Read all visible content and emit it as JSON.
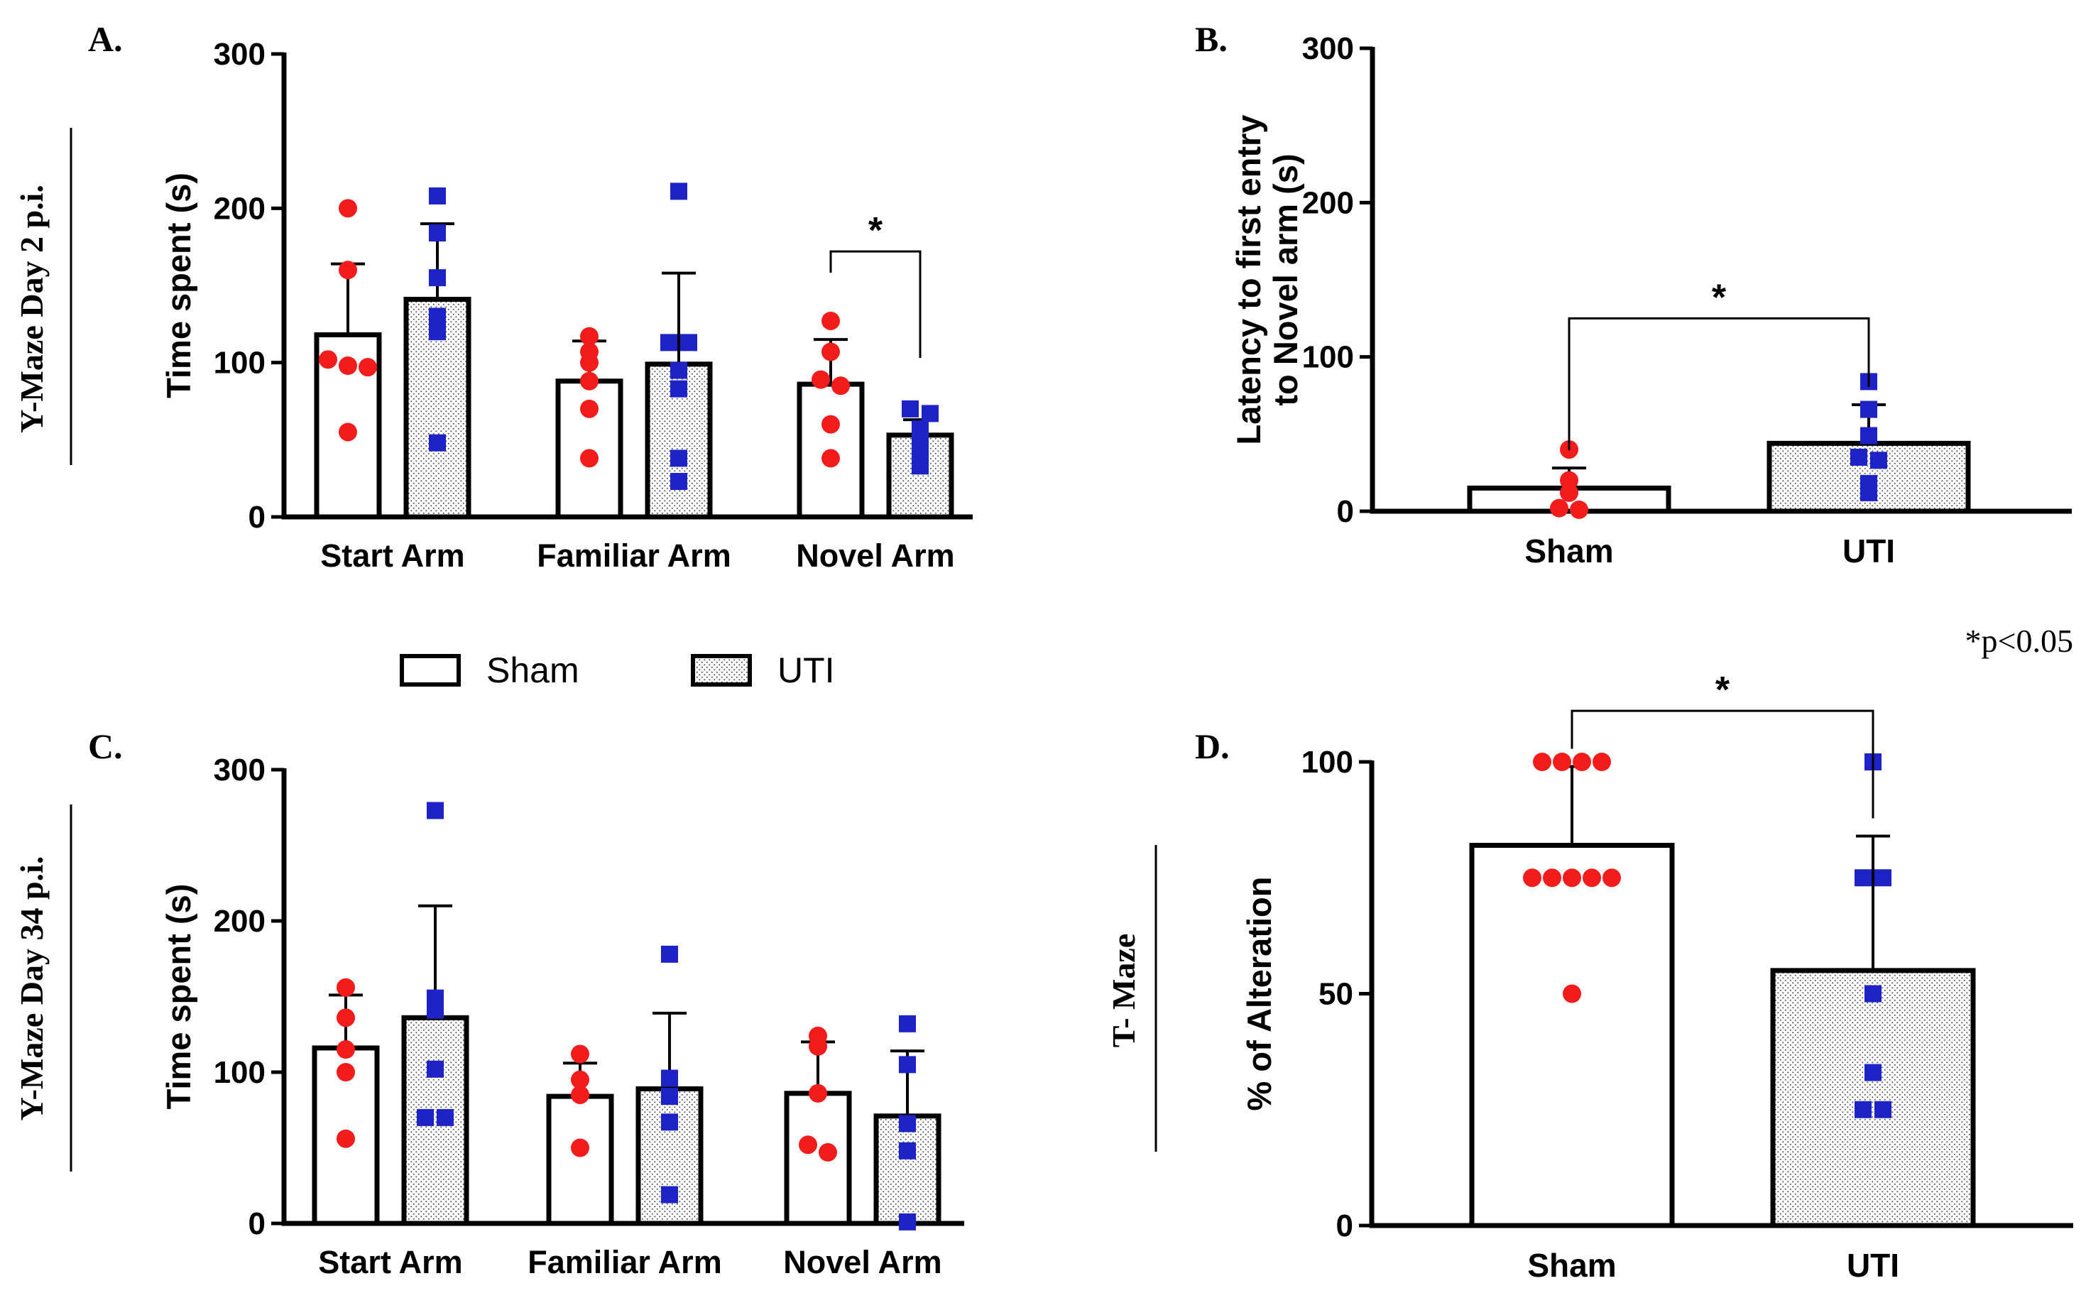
{
  "colors": {
    "sham_point": "#f21c1c",
    "uti_point": "#1e23c8",
    "axis": "#000000",
    "bar_fill": "#ffffff",
    "stipple": "#555555"
  },
  "legend": {
    "sham_label": "Sham",
    "uti_label": "UTI"
  },
  "note": "*p<0.05",
  "side_labels": {
    "row1": "Y-Maze Day 2 p.i.",
    "row2": "Y-Maze Day 34 p.i.",
    "tmaze": "T- Maze"
  },
  "chart_data": [
    {
      "panel": "A.",
      "type": "bar",
      "ylabel": "Time spent (s)",
      "ylim": [
        0,
        300
      ],
      "yticks": [
        "0",
        "100",
        "200",
        "300"
      ],
      "categories": [
        "Start Arm",
        "Familiar Arm",
        "Novel Arm"
      ],
      "series": [
        {
          "name": "Sham",
          "values": [
            118,
            88,
            86
          ],
          "errors": [
            46,
            26,
            29
          ],
          "points": [
            [
              200,
              160,
              102,
              98,
              97,
              55
            ],
            [
              117,
              107,
              100,
              88,
              70,
              38
            ],
            [
              127,
              107,
              89,
              85,
              60,
              38
            ]
          ]
        },
        {
          "name": "UTI",
          "values": [
            141,
            99,
            53
          ],
          "errors": [
            49,
            59,
            10
          ],
          "points": [
            [
              208,
              184,
              155,
              130,
              120,
              48
            ],
            [
              211,
              113,
              113,
              95,
              83,
              38,
              23
            ],
            [
              70,
              67,
              57,
              50,
              43,
              33
            ]
          ]
        }
      ],
      "annotations": [
        {
          "text": "*",
          "category": "Novel Arm",
          "level": 172
        }
      ]
    },
    {
      "panel": "B.",
      "type": "bar",
      "ylabel_lines": [
        "Latency to first entry",
        "to Novel arm (s)"
      ],
      "ylim": [
        0,
        300
      ],
      "yticks": [
        "0",
        "100",
        "200",
        "300"
      ],
      "categories": [
        "Sham",
        "UTI"
      ],
      "values": [
        15,
        44
      ],
      "errors": [
        13,
        25
      ],
      "points": [
        [
          40,
          20,
          12,
          2,
          1
        ],
        [
          84,
          66,
          49,
          35,
          33,
          18,
          12
        ]
      ],
      "annotations": [
        {
          "text": "*",
          "level": 125
        }
      ]
    },
    {
      "panel": "C.",
      "type": "bar",
      "ylabel": "Time spent (s)",
      "ylim": [
        0,
        300
      ],
      "yticks": [
        "0",
        "100",
        "200",
        "300"
      ],
      "categories": [
        "Start Arm",
        "Familiar Arm",
        "Novel Arm"
      ],
      "series": [
        {
          "name": "Sham",
          "values": [
            116,
            84,
            86
          ],
          "errors": [
            35,
            22,
            34
          ],
          "points": [
            [
              156,
              136,
              115,
              100,
              56
            ],
            [
              112,
              95,
              85,
              50
            ],
            [
              124,
              117,
              86,
              52,
              47
            ]
          ]
        },
        {
          "name": "UTI",
          "values": [
            136,
            89,
            71
          ],
          "errors": [
            74,
            50,
            43
          ],
          "points": [
            [
              273,
              149,
              141,
              102,
              70,
              70
            ],
            [
              178,
              96,
              84,
              67,
              19
            ],
            [
              132,
              105,
              66,
              48,
              1
            ]
          ]
        }
      ]
    },
    {
      "panel": "D.",
      "type": "bar",
      "ylabel": "% of Alteration",
      "ylim": [
        0,
        100
      ],
      "yticks": [
        "0",
        "50",
        "100"
      ],
      "categories": [
        "Sham",
        "UTI"
      ],
      "values": [
        82,
        55
      ],
      "errors": [
        17,
        29
      ],
      "points": [
        [
          100,
          100,
          100,
          100,
          75,
          75,
          75,
          75,
          75,
          50
        ],
        [
          100,
          75,
          75,
          50,
          33,
          25,
          25
        ]
      ],
      "annotations": [
        {
          "text": "*",
          "level": 111
        }
      ]
    }
  ]
}
